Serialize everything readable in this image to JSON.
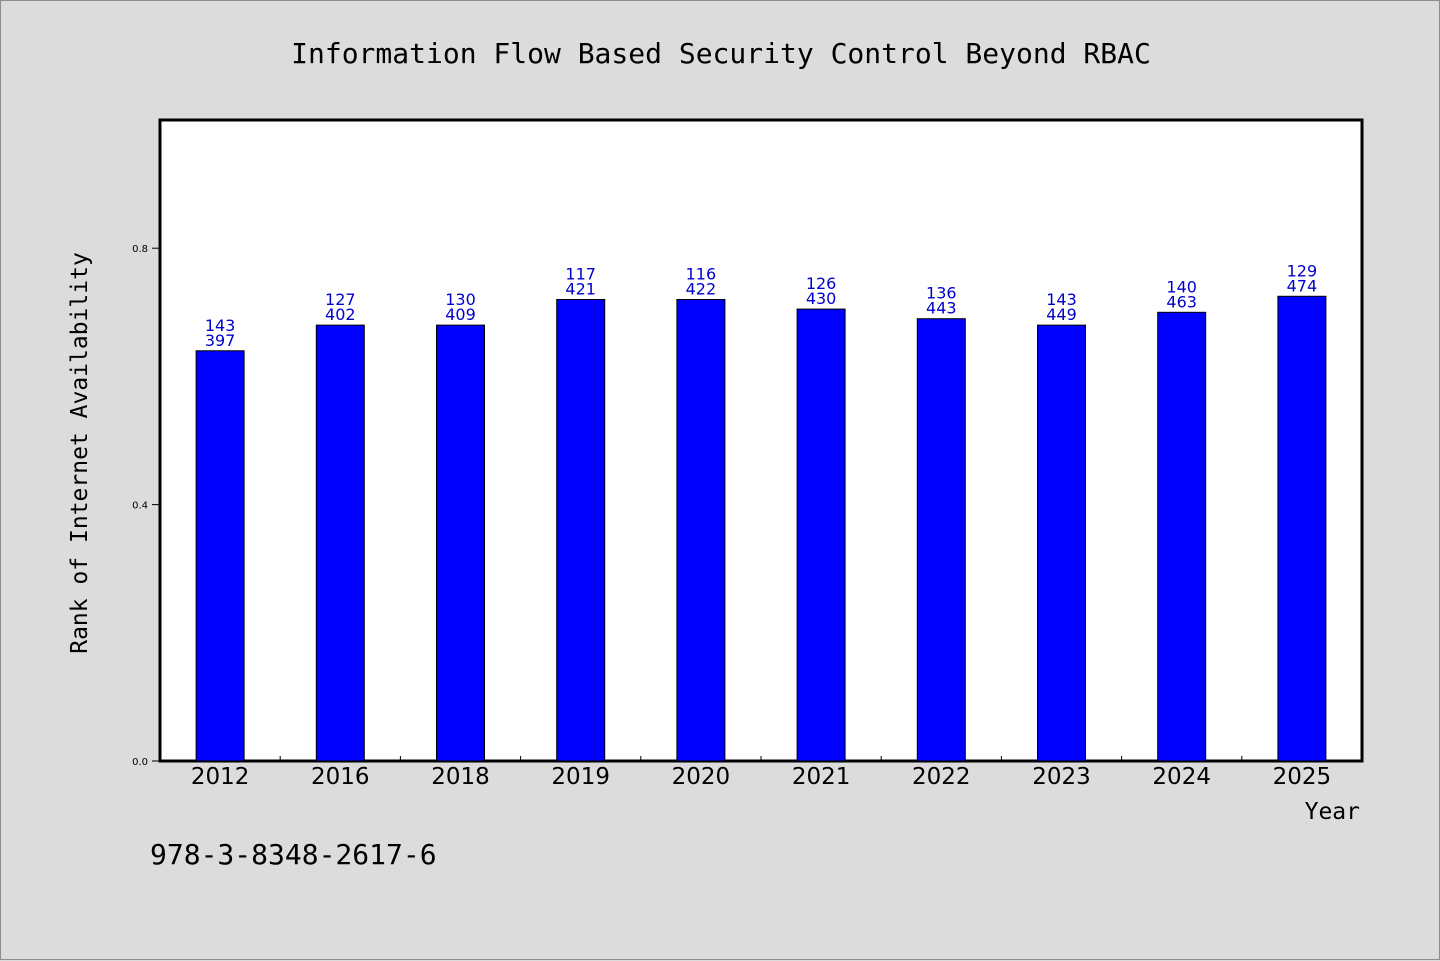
{
  "chart_data": {
    "type": "bar",
    "title": "Information Flow Based Security Control Beyond RBAC",
    "xlabel": "Year",
    "ylabel": "Rank of Internet Availability",
    "categories": [
      "2012",
      "2016",
      "2018",
      "2019",
      "2020",
      "2021",
      "2022",
      "2023",
      "2024",
      "2025"
    ],
    "values": [
      0.64,
      0.68,
      0.68,
      0.72,
      0.72,
      0.705,
      0.69,
      0.68,
      0.7,
      0.725
    ],
    "bar_labels_top": [
      "143",
      "127",
      "130",
      "117",
      "116",
      "126",
      "136",
      "143",
      "140",
      "129"
    ],
    "bar_labels_bottom": [
      "397",
      "402",
      "409",
      "421",
      "422",
      "430",
      "443",
      "449",
      "463",
      "474"
    ],
    "ylim": [
      0,
      1.0
    ],
    "yticks": [
      0.0,
      0.4,
      0.8
    ],
    "ytick_labels": [
      "0.0",
      "0.4",
      "0.8"
    ],
    "grid": false,
    "legend": "none",
    "bar_color": "#0000ff",
    "label_color": "#0000cc",
    "annotation": "978-3-8348-2617-6"
  }
}
